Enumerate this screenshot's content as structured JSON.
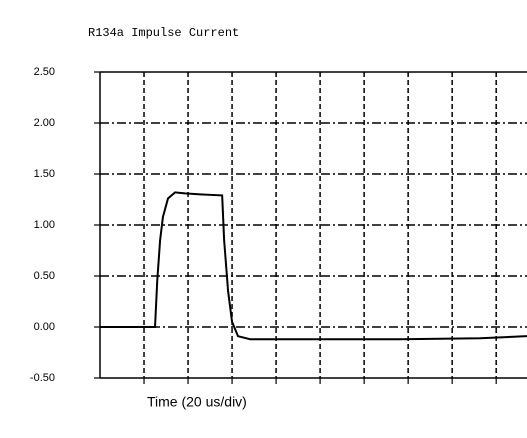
{
  "chart_data": {
    "type": "line",
    "title": "R134a Impulse Current",
    "x_label": "Time (20 us/div)",
    "x": [
      0,
      25,
      26,
      27.3,
      28.6,
      30.9,
      34.1,
      38.6,
      45.5,
      55.5,
      56.4,
      58.2,
      60,
      62.7,
      68.2,
      136.4,
      172.7,
      194
    ],
    "series": [
      {
        "name": "Impulse Current",
        "color": "#000000",
        "values": [
          0,
          0,
          0.45,
          0.85,
          1.08,
          1.26,
          1.32,
          1.31,
          1.3,
          1.29,
          0.85,
          0.35,
          0.05,
          -0.09,
          -0.12,
          -0.12,
          -0.11,
          -0.09
        ]
      }
    ],
    "xlim": [
      0,
      194
    ],
    "xticks": [
      20,
      40,
      60,
      80,
      100,
      120,
      140,
      160,
      180
    ],
    "ylim": [
      -0.5,
      2.5
    ],
    "yticks": [
      {
        "value": -0.5,
        "label": "-0.50"
      },
      {
        "value": 0,
        "label": "0.00"
      },
      {
        "value": 0.5,
        "label": "0.50"
      },
      {
        "value": 1,
        "label": "1.00"
      },
      {
        "value": 1.5,
        "label": "1.50"
      },
      {
        "value": 2,
        "label": "2.00"
      },
      {
        "value": 2.5,
        "label": "2.50"
      }
    ],
    "grid": true
  }
}
